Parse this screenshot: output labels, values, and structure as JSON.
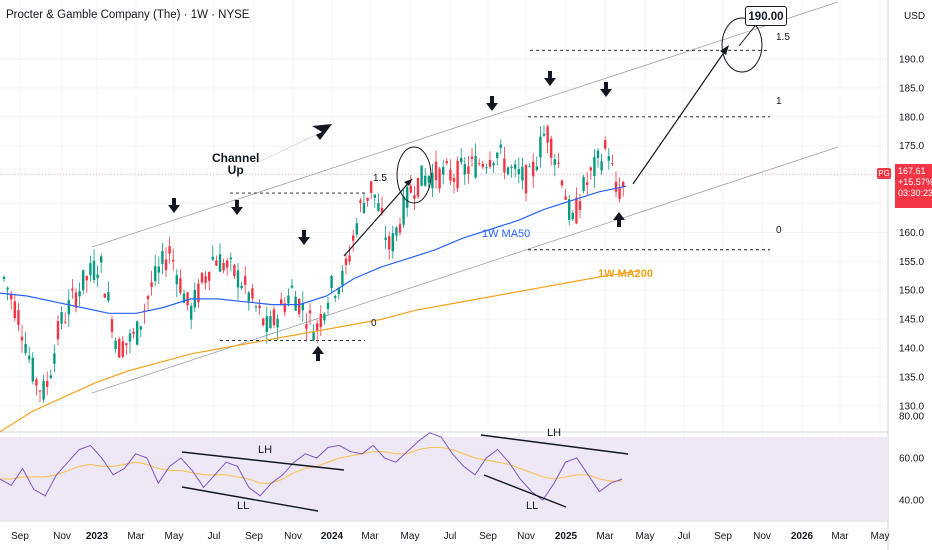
{
  "header": {
    "title": "Procter & Gamble Company (The) · 1W · NYSE",
    "currency": "USD"
  },
  "price_tag": {
    "symbol": "PG",
    "price": "167.61",
    "change": "+15.57%",
    "countdown": "03:30:23"
  },
  "annotations": {
    "channel_label": "Channel\nUp",
    "target_label": "190.00",
    "ma50_label": "1W MA50",
    "ma200_label": "1W MA200",
    "lh_label": "LH",
    "ll_label": "LL"
  },
  "colors": {
    "up": "#089981",
    "down": "#f23645",
    "ma50": "#2962ff",
    "ma200": "#f7a21b",
    "rsi": "#7e57c2",
    "rsi_ma": "#f7c35a",
    "rsi_band": "#ede7f6"
  },
  "chart_data": [
    {
      "type": "candlestick",
      "title": "Procter & Gamble Company (The) · 1W · NYSE",
      "ylabel": "USD",
      "y_ticks": [
        130,
        135,
        140,
        145,
        150,
        155,
        160,
        165,
        170,
        175,
        180,
        185,
        190
      ],
      "x_tick_labels": [
        "Sep",
        "Nov",
        "2023",
        "Mar",
        "May",
        "Jul",
        "Sep",
        "Nov",
        "2024",
        "Mar",
        "May",
        "Jul",
        "Sep",
        "Nov",
        "2025",
        "Mar",
        "May",
        "Jul",
        "Sep",
        "Nov",
        "2026",
        "Mar",
        "May"
      ],
      "last_price": 167.61,
      "series": [
        {
          "name": "1W MA50",
          "values": [
            149.5,
            149.0,
            148.0,
            147.0,
            146.0,
            146.0,
            147.0,
            148.5,
            148.5,
            148.0,
            147.5,
            147.5,
            149.0,
            152.0,
            154.0,
            155.5,
            157.0,
            159.0,
            160.5,
            162.0,
            164.0,
            165.5,
            167.0,
            168.0
          ]
        },
        {
          "name": "1W MA200",
          "values": [
            125.5,
            129.0,
            131.5,
            134.0,
            136.0,
            137.5,
            139.0,
            140.0,
            141.0,
            142.0,
            143.0,
            144.0,
            145.0,
            146.5,
            147.5,
            148.5,
            149.5,
            150.5,
            151.5,
            152.5,
            153.3
          ]
        }
      ],
      "fibonacci": [
        {
          "label": "1.5",
          "price": 191.5
        },
        {
          "label": "1",
          "price": 180.0
        },
        {
          "label": "0",
          "price": 157.0
        },
        {
          "label": "1.5",
          "price": 166.8
        },
        {
          "label": "0",
          "price": 141.3
        }
      ],
      "target": 190.0
    },
    {
      "type": "line",
      "title": "RSI",
      "y_ticks": [
        40.0,
        60.0,
        80.0
      ],
      "series": [
        {
          "name": "RSI",
          "values": [
            50,
            47,
            55,
            45,
            42,
            52,
            58,
            64,
            66,
            60,
            52,
            55,
            62,
            60,
            48,
            56,
            60,
            54,
            46,
            52,
            58,
            56,
            46,
            42,
            48,
            52,
            58,
            62,
            60,
            65,
            66,
            63,
            62,
            66,
            60,
            58,
            63,
            68,
            72,
            70,
            62,
            56,
            52,
            60,
            64,
            58,
            50,
            44,
            40,
            48,
            58,
            60,
            52,
            44,
            48,
            50
          ]
        },
        {
          "name": "RSI MA",
          "values": [
            50,
            50,
            51,
            51,
            51,
            52,
            54,
            56,
            57,
            56,
            56,
            57,
            58,
            57,
            55,
            54,
            54,
            53,
            52,
            52,
            52,
            51,
            50,
            48,
            48,
            50,
            53,
            55,
            56,
            58,
            60,
            61,
            62,
            63,
            63,
            62,
            62,
            64,
            65,
            65,
            64,
            62,
            60,
            59,
            58,
            57,
            55,
            53,
            51,
            50,
            51,
            52,
            52,
            50,
            49,
            49
          ]
        }
      ]
    }
  ]
}
